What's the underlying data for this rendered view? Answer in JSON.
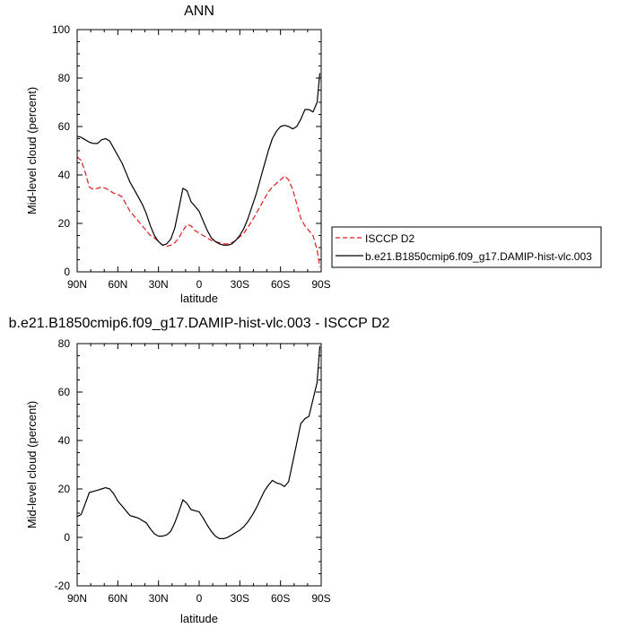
{
  "chart_data": [
    {
      "type": "line",
      "title": "ANN",
      "xlabel": "latitude",
      "ylabel": "Mid-level cloud (percent)",
      "xlim": [
        90,
        -90
      ],
      "ylim": [
        0,
        100
      ],
      "xticks": [
        {
          "value": 90,
          "label": "90N"
        },
        {
          "value": 60,
          "label": "60N"
        },
        {
          "value": 30,
          "label": "30N"
        },
        {
          "value": 0,
          "label": "0"
        },
        {
          "value": -30,
          "label": "30S"
        },
        {
          "value": -60,
          "label": "60S"
        },
        {
          "value": -90,
          "label": "90S"
        }
      ],
      "yticks": [
        0,
        20,
        40,
        60,
        80,
        100
      ],
      "grid": false,
      "legend": "right",
      "series": [
        {
          "name": "ISCCP D2",
          "color": "#e41a1c",
          "dash": true,
          "x": [
            90,
            87,
            84,
            81,
            78,
            75,
            72,
            69,
            66,
            63,
            60,
            57,
            54,
            51,
            48,
            45,
            42,
            39,
            36,
            33,
            30,
            27,
            24,
            21,
            18,
            15,
            12,
            9,
            6,
            3,
            0,
            -3,
            -6,
            -9,
            -12,
            -15,
            -18,
            -21,
            -24,
            -27,
            -30,
            -33,
            -36,
            -39,
            -42,
            -45,
            -48,
            -51,
            -54,
            -57,
            -60,
            -63,
            -66,
            -69,
            -72,
            -75,
            -78,
            -81,
            -84,
            -87,
            -89
          ],
          "y": [
            47.5,
            46,
            41,
            35,
            34,
            34.5,
            35,
            34.5,
            33.5,
            32.5,
            32,
            31,
            28,
            25,
            23,
            21,
            19,
            17,
            15,
            14,
            12.5,
            11,
            10.5,
            11,
            12,
            14,
            17,
            19.5,
            19,
            17,
            16,
            15,
            14,
            13,
            12.5,
            12,
            11.5,
            11.5,
            12,
            13,
            14.5,
            16,
            18.5,
            21,
            24,
            27,
            30,
            33,
            35,
            36.5,
            38,
            39.5,
            38,
            34,
            28,
            22,
            19,
            17,
            15,
            9,
            2
          ]
        },
        {
          "name": "b.e21.B1850cmip6.f09_g17.DAMIP-hist-vlc.003",
          "color": "#000000",
          "dash": false,
          "x": [
            90,
            87,
            84,
            81,
            78,
            75,
            72,
            69,
            66,
            63,
            60,
            57,
            54,
            51,
            48,
            45,
            42,
            39,
            36,
            33,
            30,
            27,
            24,
            21,
            18,
            15,
            12,
            9,
            6,
            3,
            0,
            -3,
            -6,
            -9,
            -12,
            -15,
            -18,
            -21,
            -24,
            -27,
            -30,
            -33,
            -36,
            -39,
            -42,
            -45,
            -48,
            -51,
            -54,
            -57,
            -60,
            -63,
            -66,
            -69,
            -72,
            -75,
            -78,
            -81,
            -84,
            -87,
            -89
          ],
          "y": [
            56,
            55.5,
            54.5,
            53.5,
            53,
            53,
            54.5,
            55,
            54,
            51,
            48,
            45,
            41,
            37,
            34,
            31,
            28,
            24,
            19,
            15,
            12.5,
            11,
            11.5,
            13.5,
            18,
            26,
            34.5,
            33.5,
            29,
            27,
            25,
            21,
            17,
            14,
            12.5,
            11.5,
            11,
            11,
            11.5,
            13,
            15,
            18,
            22,
            27,
            32,
            38,
            44,
            50,
            55,
            58,
            60,
            60.5,
            60,
            59,
            60,
            63,
            67,
            67,
            66,
            70,
            82
          ]
        }
      ]
    },
    {
      "type": "line",
      "title": "b.e21.B1850cmip6.f09_g17.DAMIP-hist-vlc.003 - ISCCP D2",
      "xlabel": "latitude",
      "ylabel": "Mid-level cloud (percent)",
      "xlim": [
        90,
        -90
      ],
      "ylim": [
        -20,
        80
      ],
      "xticks": [
        {
          "value": 90,
          "label": "90N"
        },
        {
          "value": 60,
          "label": "60N"
        },
        {
          "value": 30,
          "label": "30N"
        },
        {
          "value": 0,
          "label": "0"
        },
        {
          "value": -30,
          "label": "30S"
        },
        {
          "value": -60,
          "label": "60S"
        },
        {
          "value": -90,
          "label": "90S"
        }
      ],
      "yticks": [
        -20,
        0,
        20,
        40,
        60,
        80
      ],
      "grid": false,
      "series": [
        {
          "color": "#000000",
          "dash": false,
          "x": [
            90,
            87,
            84,
            81,
            78,
            75,
            72,
            69,
            66,
            63,
            60,
            57,
            54,
            51,
            48,
            45,
            42,
            39,
            36,
            33,
            30,
            27,
            24,
            21,
            18,
            15,
            12,
            9,
            6,
            3,
            0,
            -3,
            -6,
            -9,
            -12,
            -15,
            -18,
            -21,
            -24,
            -27,
            -30,
            -33,
            -36,
            -39,
            -42,
            -45,
            -48,
            -51,
            -54,
            -57,
            -60,
            -63,
            -66,
            -69,
            -72,
            -75,
            -78,
            -81,
            -84,
            -87,
            -89
          ],
          "y": [
            8.5,
            9.5,
            14,
            18.5,
            19,
            19.5,
            20,
            20.5,
            20,
            18,
            15,
            13,
            11,
            9,
            8.5,
            8,
            7,
            6,
            3.5,
            1.5,
            0.5,
            0.5,
            1,
            2.5,
            6,
            10.5,
            15.5,
            14,
            11.5,
            11,
            10.5,
            8,
            5,
            2.5,
            0.5,
            -0.5,
            -0.5,
            0,
            1,
            2,
            3,
            4.5,
            6.5,
            9,
            12,
            15.5,
            19,
            21.5,
            23.5,
            22.5,
            22,
            21,
            23,
            31,
            39,
            47,
            49,
            50,
            57,
            64,
            79
          ]
        }
      ]
    }
  ]
}
